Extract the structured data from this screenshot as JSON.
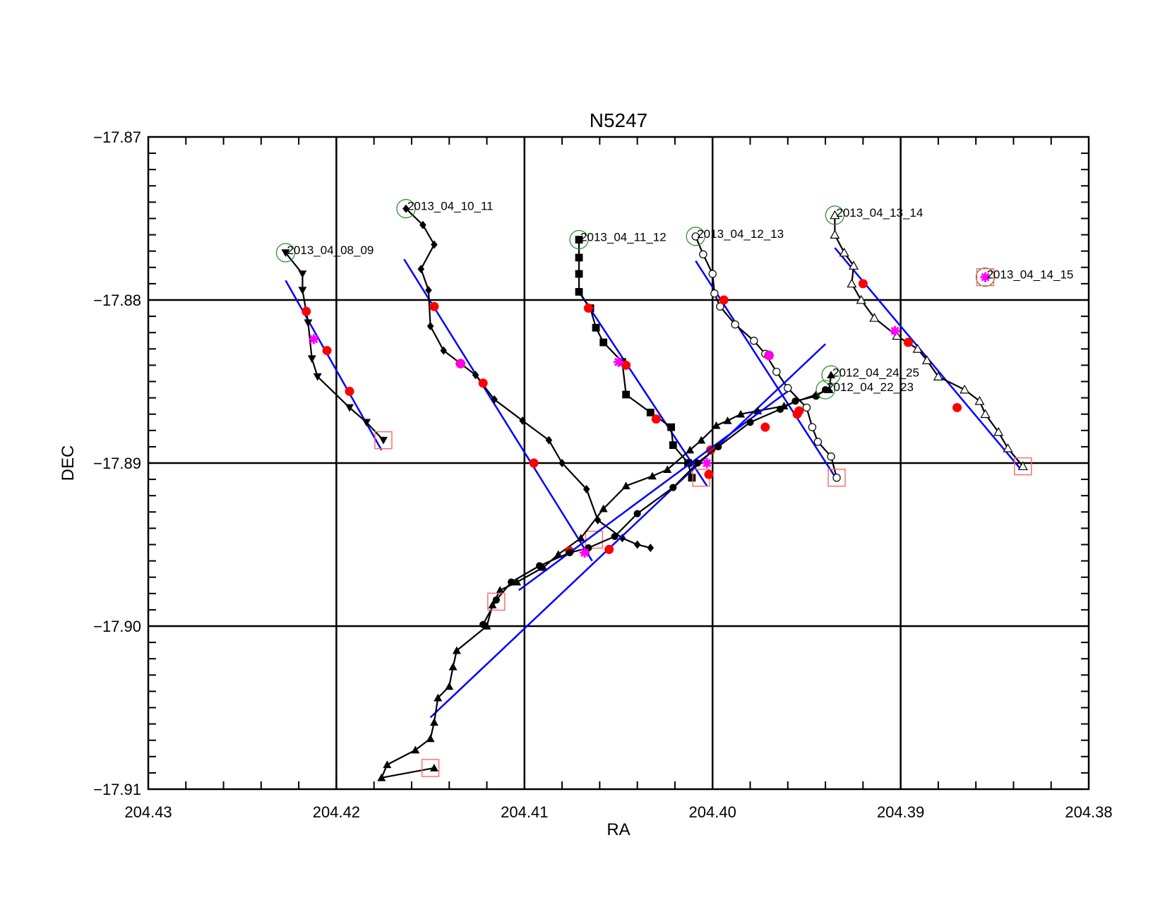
{
  "chart_data": {
    "type": "scatter",
    "title": "N5247",
    "xlabel": "RA",
    "ylabel": "DEC",
    "xlim": [
      204.43,
      204.38
    ],
    "ylim": [
      -17.91,
      -17.87
    ],
    "x_reversed": true,
    "x_ticks": [
      204.43,
      204.42,
      204.41,
      204.4,
      204.39,
      204.38
    ],
    "x_tick_labels": [
      "204.43",
      "204.42",
      "204.41",
      "204.40",
      "204.39",
      "204.38"
    ],
    "y_ticks": [
      -17.91,
      -17.9,
      -17.89,
      -17.88,
      -17.87
    ],
    "y_tick_labels": [
      "−17.91",
      "−17.90",
      "−17.89",
      "−17.88",
      "−17.87"
    ],
    "grid_x": [
      204.42,
      204.41,
      204.4,
      204.39
    ],
    "grid_y": [
      -17.9,
      -17.89,
      -17.88
    ],
    "colors": {
      "track": "#000000",
      "fit": "#0000ff",
      "red_dot": "#ff0000",
      "star": "#ff00ff",
      "start_circle": "#228b22",
      "end_square": "#ff6666",
      "grid": "#000000"
    },
    "series": [
      {
        "name": "2013_04_08_09",
        "marker": "triangle-down",
        "points": [
          [
            204.4227,
            -17.8771
          ],
          [
            204.4218,
            -17.8784
          ],
          [
            204.4218,
            -17.8794
          ],
          [
            204.4215,
            -17.8814
          ],
          [
            204.4213,
            -17.8836
          ],
          [
            204.421,
            -17.8847
          ],
          [
            204.4193,
            -17.8866
          ],
          [
            204.4184,
            -17.8875
          ],
          [
            204.4175,
            -17.8886
          ]
        ],
        "fit": [
          [
            204.4227,
            -17.8788
          ],
          [
            204.4176,
            -17.8892
          ]
        ],
        "red_dots": [
          [
            204.4216,
            -17.8807
          ],
          [
            204.4205,
            -17.8831
          ],
          [
            204.4193,
            -17.8856
          ]
        ],
        "stars": [
          [
            204.4212,
            -17.8824
          ]
        ],
        "start": [
          204.4227,
          -17.8771
        ],
        "end": [
          204.4175,
          -17.8886
        ]
      },
      {
        "name": "2013_04_10_11",
        "marker": "diamond",
        "points": [
          [
            204.4163,
            -17.8744
          ],
          [
            204.4154,
            -17.8754
          ],
          [
            204.4148,
            -17.8766
          ],
          [
            204.4155,
            -17.8781
          ],
          [
            204.4151,
            -17.8794
          ],
          [
            204.415,
            -17.8816
          ],
          [
            204.4143,
            -17.8831
          ],
          [
            204.4126,
            -17.8846
          ],
          [
            204.4116,
            -17.8861
          ],
          [
            204.4101,
            -17.8874
          ],
          [
            204.4087,
            -17.8886
          ],
          [
            204.408,
            -17.89
          ],
          [
            204.4067,
            -17.8916
          ],
          [
            204.4061,
            -17.8935
          ],
          [
            204.4048,
            -17.8946
          ],
          [
            204.404,
            -17.895
          ],
          [
            204.4033,
            -17.8952
          ]
        ],
        "fit": [
          [
            204.4164,
            -17.8775
          ],
          [
            204.4064,
            -17.896
          ]
        ],
        "red_dots": [
          [
            204.4148,
            -17.8804
          ],
          [
            204.4134,
            -17.8839
          ],
          [
            204.4122,
            -17.8851
          ],
          [
            204.4095,
            -17.89
          ]
        ],
        "stars": [
          [
            204.4134,
            -17.8839
          ]
        ],
        "start": [
          204.4163,
          -17.8744
        ],
        "end": [
          204.4063,
          -17.8947
        ]
      },
      {
        "name": "2013_04_11_12",
        "marker": "square",
        "points": [
          [
            204.4071,
            -17.8763
          ],
          [
            204.4071,
            -17.8774
          ],
          [
            204.4071,
            -17.8784
          ],
          [
            204.4071,
            -17.8795
          ],
          [
            204.4065,
            -17.8805
          ],
          [
            204.4062,
            -17.8817
          ],
          [
            204.4058,
            -17.8826
          ],
          [
            204.4048,
            -17.8838
          ],
          [
            204.4046,
            -17.8858
          ],
          [
            204.4033,
            -17.8869
          ],
          [
            204.4022,
            -17.8878
          ],
          [
            204.4021,
            -17.8889
          ],
          [
            204.4013,
            -17.89
          ],
          [
            204.4011,
            -17.8909
          ]
        ],
        "fit": [
          [
            204.4071,
            -17.8795
          ],
          [
            204.4003,
            -17.8914
          ]
        ],
        "red_dots": [
          [
            204.4066,
            -17.8805
          ],
          [
            204.4046,
            -17.884
          ],
          [
            204.403,
            -17.8873
          ]
        ],
        "stars": [
          [
            204.405,
            -17.8838
          ]
        ],
        "start": [
          204.4071,
          -17.8763
        ],
        "end": [
          204.4006,
          -17.8909
        ]
      },
      {
        "name": "2013_04_12_13",
        "marker": "circle-open",
        "points": [
          [
            204.4009,
            -17.8761
          ],
          [
            204.4005,
            -17.8772
          ],
          [
            204.4,
            -17.8784
          ],
          [
            204.3999,
            -17.8796
          ],
          [
            204.3996,
            -17.8804
          ],
          [
            204.3988,
            -17.8815
          ],
          [
            204.3978,
            -17.8825
          ],
          [
            204.3972,
            -17.8833
          ],
          [
            204.3966,
            -17.8844
          ],
          [
            204.396,
            -17.8854
          ],
          [
            204.395,
            -17.8866
          ],
          [
            204.3947,
            -17.8878
          ],
          [
            204.3944,
            -17.8887
          ],
          [
            204.3937,
            -17.8896
          ],
          [
            204.3934,
            -17.8909
          ]
        ],
        "fit": [
          [
            204.4009,
            -17.8776
          ],
          [
            204.3934,
            -17.891
          ]
        ],
        "red_dots": [
          [
            204.3994,
            -17.88
          ],
          [
            204.397,
            -17.8834
          ],
          [
            204.3955,
            -17.887
          ]
        ],
        "stars": [
          [
            204.397,
            -17.8834
          ]
        ],
        "start": [
          204.4009,
          -17.8761
        ],
        "end": [
          204.3934,
          -17.8909
        ]
      },
      {
        "name": "2013_04_13_14",
        "marker": "triangle-open",
        "points": [
          [
            204.3935,
            -17.8748
          ],
          [
            204.3935,
            -17.876
          ],
          [
            204.393,
            -17.8771
          ],
          [
            204.3925,
            -17.8779
          ],
          [
            204.3926,
            -17.879
          ],
          [
            204.3921,
            -17.88
          ],
          [
            204.3914,
            -17.8811
          ],
          [
            204.3902,
            -17.8822
          ],
          [
            204.3891,
            -17.883
          ],
          [
            204.3886,
            -17.8837
          ],
          [
            204.388,
            -17.8847
          ],
          [
            204.3866,
            -17.8855
          ],
          [
            204.3858,
            -17.8862
          ],
          [
            204.3855,
            -17.887
          ],
          [
            204.3848,
            -17.8881
          ],
          [
            204.3843,
            -17.8891
          ],
          [
            204.3835,
            -17.8902
          ]
        ],
        "fit": [
          [
            204.3935,
            -17.8768
          ],
          [
            204.3836,
            -17.8904
          ]
        ],
        "red_dots": [
          [
            204.392,
            -17.879
          ],
          [
            204.3896,
            -17.8826
          ],
          [
            204.387,
            -17.8866
          ]
        ],
        "stars": [
          [
            204.3903,
            -17.8819
          ]
        ],
        "start": [
          204.3935,
          -17.8748
        ],
        "end": [
          204.3835,
          -17.8902
        ]
      },
      {
        "name": "2013_04_14_15",
        "marker": "star",
        "points": [
          [
            204.3855,
            -17.8786
          ]
        ],
        "fit": [],
        "red_dots": [],
        "stars": [
          [
            204.3855,
            -17.8786
          ]
        ],
        "start": [
          204.3855,
          -17.8786
        ],
        "end": [
          204.3855,
          -17.8786
        ]
      },
      {
        "name": "2012_04_24_25",
        "marker": "triangle",
        "points": [
          [
            204.3937,
            -17.8846
          ],
          [
            204.3938,
            -17.8855
          ],
          [
            204.3945,
            -17.8858
          ],
          [
            204.3962,
            -17.8865
          ],
          [
            204.3976,
            -17.8868
          ],
          [
            204.3985,
            -17.887
          ],
          [
            204.3992,
            -17.8874
          ],
          [
            204.3998,
            -17.8877
          ],
          [
            204.4006,
            -17.8886
          ],
          [
            204.4012,
            -17.8892
          ],
          [
            204.4024,
            -17.8904
          ],
          [
            204.4032,
            -17.8908
          ],
          [
            204.4046,
            -17.8914
          ],
          [
            204.4058,
            -17.8928
          ],
          [
            204.407,
            -17.8946
          ],
          [
            204.4082,
            -17.8956
          ],
          [
            204.409,
            -17.8964
          ],
          [
            204.4104,
            -17.8973
          ],
          [
            204.4113,
            -17.8978
          ],
          [
            204.4117,
            -17.8987
          ],
          [
            204.412,
            -17.9
          ],
          [
            204.4136,
            -17.9015
          ],
          [
            204.4138,
            -17.9025
          ],
          [
            204.414,
            -17.9037
          ],
          [
            204.4146,
            -17.9044
          ],
          [
            204.4148,
            -17.9059
          ],
          [
            204.415,
            -17.9069
          ],
          [
            204.4158,
            -17.9076
          ],
          [
            204.4173,
            -17.9085
          ],
          [
            204.4176,
            -17.9093
          ],
          [
            204.4148,
            -17.9087
          ]
        ],
        "fit": [
          [
            204.394,
            -17.8827
          ],
          [
            204.415,
            -17.9056
          ]
        ],
        "red_dots": [
          [
            204.4076,
            -17.8954
          ],
          [
            204.4001,
            -17.8892
          ],
          [
            204.3972,
            -17.8878
          ]
        ],
        "stars": [],
        "start": [
          204.3937,
          -17.8846
        ],
        "end": [
          204.415,
          -17.9087
        ]
      },
      {
        "name": "2012_04_22_23",
        "marker": "circle",
        "points": [
          [
            204.394,
            -17.8855
          ],
          [
            204.3945,
            -17.8859
          ],
          [
            204.3956,
            -17.8862
          ],
          [
            204.3964,
            -17.8867
          ],
          [
            204.398,
            -17.8875
          ],
          [
            204.3997,
            -17.889
          ],
          [
            204.4008,
            -17.89
          ],
          [
            204.4021,
            -17.8915
          ],
          [
            204.404,
            -17.8931
          ],
          [
            204.4052,
            -17.8945
          ],
          [
            204.4066,
            -17.8952
          ],
          [
            204.4076,
            -17.8955
          ],
          [
            204.4092,
            -17.8963
          ],
          [
            204.4107,
            -17.8973
          ],
          [
            204.4115,
            -17.8984
          ],
          [
            204.4122,
            -17.8999
          ]
        ],
        "fit": [
          [
            204.396,
            -17.8856
          ],
          [
            204.4103,
            -17.8978
          ]
        ],
        "red_dots": [
          [
            204.4055,
            -17.8953
          ],
          [
            204.4002,
            -17.8907
          ],
          [
            204.3954,
            -17.8868
          ]
        ],
        "stars": [
          [
            204.4068,
            -17.8955
          ],
          [
            204.4003,
            -17.89
          ]
        ],
        "start": [
          204.394,
          -17.8855
        ],
        "end": [
          204.4115,
          -17.8985
        ]
      }
    ],
    "labels": [
      {
        "text": "2013_04_08_09",
        "at": [
          204.4227,
          -17.8771
        ]
      },
      {
        "text": "2013_04_10_11",
        "at": [
          204.4163,
          -17.8744
        ]
      },
      {
        "text": "2013_04_11_12",
        "at": [
          204.4071,
          -17.8763
        ]
      },
      {
        "text": "2013_04_12_13",
        "at": [
          204.4009,
          -17.8761
        ]
      },
      {
        "text": "2013_04_13_14",
        "at": [
          204.3935,
          -17.8748
        ]
      },
      {
        "text": "2013_04_14_15",
        "at": [
          204.3855,
          -17.8786
        ]
      },
      {
        "text": "2012_04_24_25",
        "at": [
          204.3937,
          -17.8846
        ]
      },
      {
        "text": "2012_04_22_23",
        "at": [
          204.394,
          -17.8855
        ]
      }
    ]
  }
}
